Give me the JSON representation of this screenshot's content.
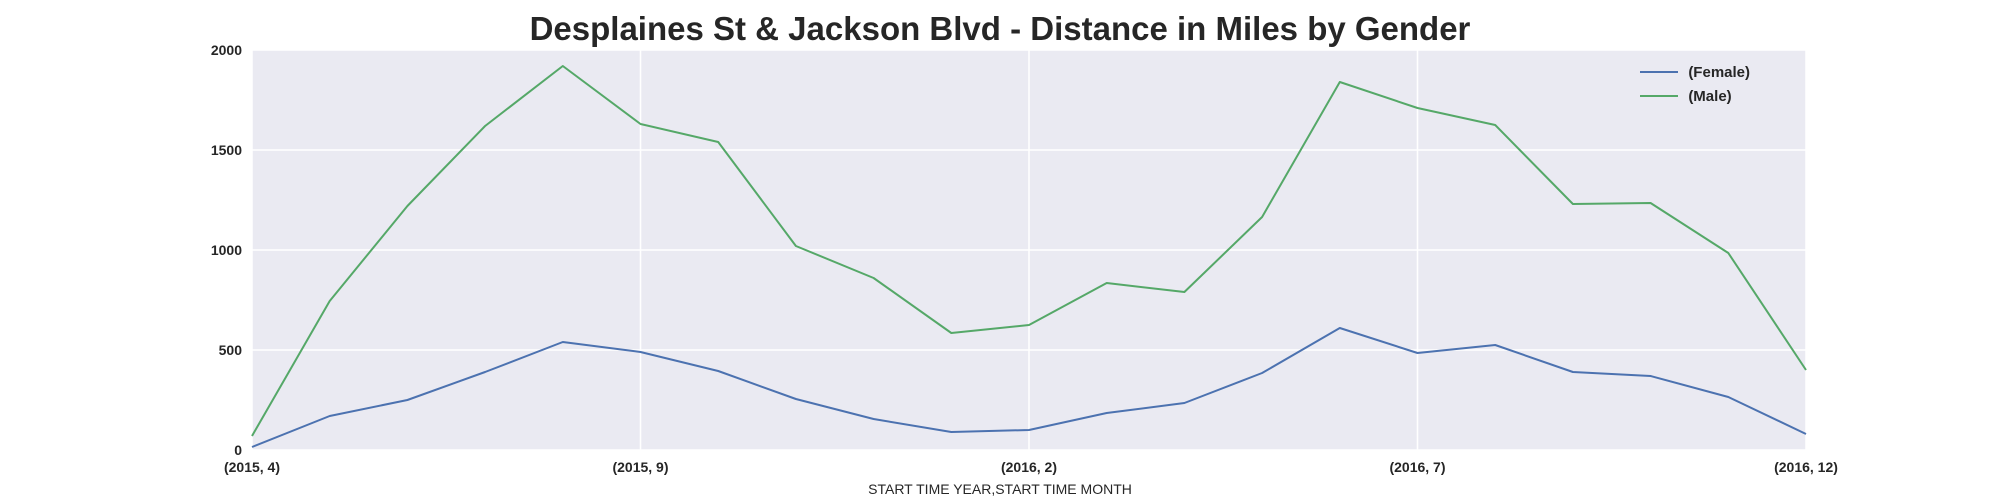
{
  "chart_data": {
    "type": "line",
    "title": "Desplaines St & Jackson Blvd - Distance in Miles by Gender",
    "xlabel": "START TIME YEAR,START TIME MONTH",
    "ylabel": "",
    "x": [
      "(2015, 4)",
      "(2015, 5)",
      "(2015, 6)",
      "(2015, 7)",
      "(2015, 8)",
      "(2015, 9)",
      "(2015, 10)",
      "(2015, 11)",
      "(2015, 12)",
      "(2016, 1)",
      "(2016, 2)",
      "(2016, 3)",
      "(2016, 4)",
      "(2016, 5)",
      "(2016, 6)",
      "(2016, 7)",
      "(2016, 8)",
      "(2016, 9)",
      "(2016, 10)",
      "(2016, 11)",
      "(2016, 12)"
    ],
    "xticks": [
      "(2015, 4)",
      "(2015, 9)",
      "(2016, 2)",
      "(2016, 7)",
      "(2016, 12)"
    ],
    "ylim": [
      0,
      2000
    ],
    "yticks": [
      "0",
      "500",
      "1000",
      "1500",
      "2000"
    ],
    "grid": true,
    "legend_position": "top-right",
    "series": [
      {
        "name": "(Female)",
        "color": "#4c72b0",
        "values": [
          15,
          170,
          250,
          390,
          540,
          490,
          395,
          255,
          155,
          90,
          100,
          185,
          235,
          385,
          610,
          485,
          525,
          390,
          370,
          265,
          80
        ]
      },
      {
        "name": "(Male)",
        "color": "#55a868",
        "values": [
          70,
          745,
          1220,
          1620,
          1920,
          1630,
          1540,
          1020,
          860,
          585,
          625,
          835,
          790,
          1165,
          1840,
          1710,
          1625,
          1230,
          1235,
          985,
          400
        ]
      }
    ]
  }
}
